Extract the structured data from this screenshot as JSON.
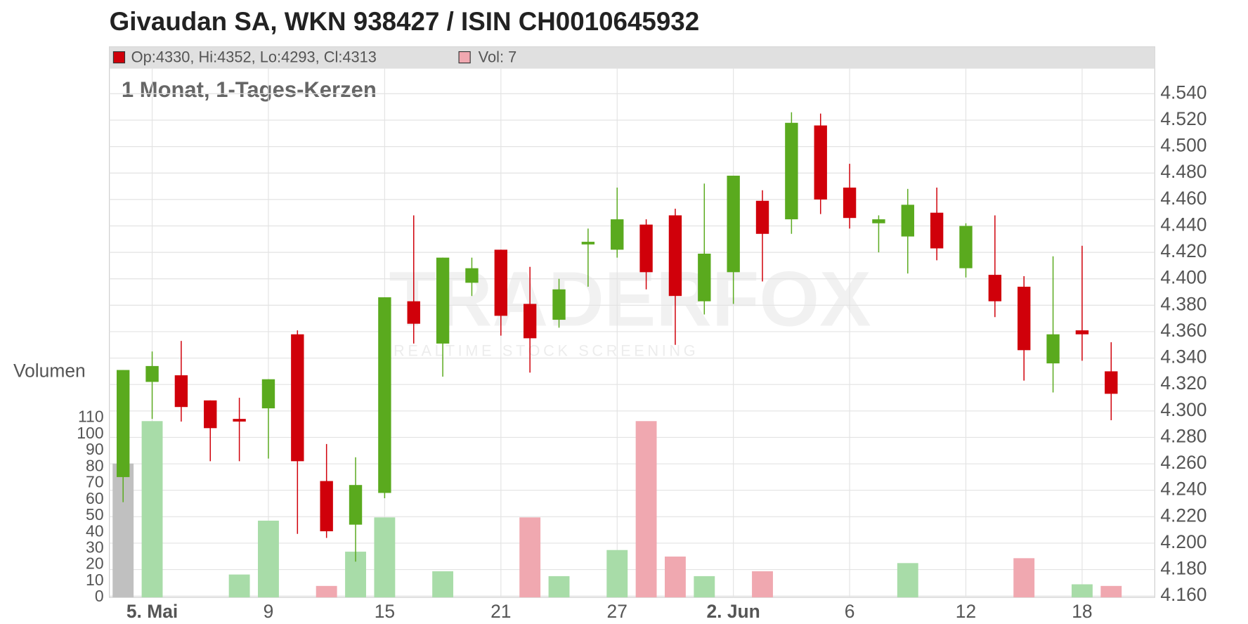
{
  "chart_data": {
    "type": "candlestick",
    "title": "Givaudan SA, WKN 938427 / ISIN CH0010645932",
    "subtitle": "1 Monat, 1-Tages-Kerzen",
    "ohlc_label": "Op:4330, Hi:4352, Lo:4293, Cl:4313",
    "volume_label": "Vol: 7",
    "y2_label": "Volumen",
    "watermark": "TRADERFOX",
    "watermark_subtitle": "REALTIME STOCK SCREENING",
    "categories": [
      null,
      "5. Mai",
      null,
      null,
      null,
      "9",
      null,
      null,
      null,
      "15",
      null,
      null,
      null,
      "21",
      null,
      null,
      null,
      "27",
      null,
      null,
      null,
      "2. Jun",
      null,
      null,
      null,
      "6",
      null,
      null,
      null,
      "12",
      null,
      null,
      null,
      "18",
      null
    ],
    "open": [
      4250,
      4322,
      4327,
      4308,
      4294,
      4302,
      4358,
      4247,
      4214,
      4238,
      4383,
      4351,
      4397,
      4422,
      4381,
      4369,
      4426,
      4422,
      4441,
      4448,
      4383,
      4405,
      4459,
      4445,
      4516,
      4469,
      4442,
      4432,
      4450,
      4408,
      4403,
      4394,
      4336,
      4361,
      4330
    ],
    "high": [
      4331,
      4345,
      4353,
      4308,
      4310,
      4324,
      4361,
      4275,
      4265,
      4386,
      4448,
      4416,
      4416,
      4422,
      4409,
      4400,
      4438,
      4469,
      4445,
      4453,
      4472,
      4478,
      4467,
      4526,
      4525,
      4487,
      4448,
      4468,
      4469,
      4442,
      4448,
      4402,
      4417,
      4425,
      4352
    ],
    "low": [
      4231,
      4294,
      4292,
      4262,
      4262,
      4264,
      4207,
      4204,
      4186,
      4234,
      4351,
      4326,
      4387,
      4357,
      4329,
      4363,
      4394,
      4416,
      4392,
      4350,
      4373,
      4381,
      4398,
      4434,
      4449,
      4438,
      4420,
      4404,
      4414,
      4401,
      4371,
      4323,
      4314,
      4338,
      4293
    ],
    "close": [
      4331,
      4334,
      4303,
      4287,
      4292,
      4324,
      4262,
      4209,
      4244,
      4386,
      4366,
      4416,
      4408,
      4372,
      4355,
      4392,
      4428,
      4445,
      4405,
      4387,
      4419,
      4478,
      4434,
      4518,
      4460,
      4446,
      4445,
      4456,
      4423,
      4440,
      4383,
      4346,
      4358,
      4358,
      4313
    ],
    "up_color": "#5aaa1e",
    "down_color": "#d0000a",
    "volume": {
      "axis": "y2",
      "values": [
        82,
        108,
        null,
        null,
        14,
        47,
        null,
        7,
        28,
        49,
        null,
        16,
        null,
        null,
        49,
        13,
        null,
        29,
        108,
        25,
        13,
        null,
        16,
        null,
        null,
        null,
        null,
        21,
        null,
        null,
        null,
        24,
        null,
        8,
        7
      ],
      "colors": [
        "#c0c0c0",
        "#a8dca8",
        null,
        null,
        "#a8dca8",
        "#a8dca8",
        null,
        "#f0a8b0",
        "#a8dca8",
        "#a8dca8",
        null,
        "#a8dca8",
        null,
        null,
        "#f0a8b0",
        "#a8dca8",
        null,
        "#a8dca8",
        "#f0a8b0",
        "#f0a8b0",
        "#a8dca8",
        null,
        "#f0a8b0",
        null,
        null,
        null,
        null,
        "#a8dca8",
        null,
        null,
        null,
        "#f0a8b0",
        null,
        "#a8dca8",
        "#f0a8b0"
      ]
    },
    "ylim": [
      4159,
      4559
    ],
    "yticks": [
      {
        "value": 4160,
        "label": "4.160"
      },
      {
        "value": 4180,
        "label": "4.180"
      },
      {
        "value": 4200,
        "label": "4.200"
      },
      {
        "value": 4220,
        "label": "4.220"
      },
      {
        "value": 4240,
        "label": "4.240"
      },
      {
        "value": 4260,
        "label": "4.260"
      },
      {
        "value": 4280,
        "label": "4.280"
      },
      {
        "value": 4300,
        "label": "4.300"
      },
      {
        "value": 4320,
        "label": "4.320"
      },
      {
        "value": 4340,
        "label": "4.340"
      },
      {
        "value": 4360,
        "label": "4.360"
      },
      {
        "value": 4380,
        "label": "4.380"
      },
      {
        "value": 4400,
        "label": "4.400"
      },
      {
        "value": 4420,
        "label": "4.420"
      },
      {
        "value": 4440,
        "label": "4.440"
      },
      {
        "value": 4460,
        "label": "4.460"
      },
      {
        "value": 4480,
        "label": "4.480"
      },
      {
        "value": 4500,
        "label": "4.500"
      },
      {
        "value": 4520,
        "label": "4.520"
      },
      {
        "value": 4540,
        "label": "4.540"
      }
    ],
    "y2lim": [
      0,
      324
    ],
    "y2ticks": [
      0,
      10,
      20,
      30,
      40,
      50,
      60,
      70,
      80,
      90,
      100,
      110
    ],
    "grid": true
  }
}
